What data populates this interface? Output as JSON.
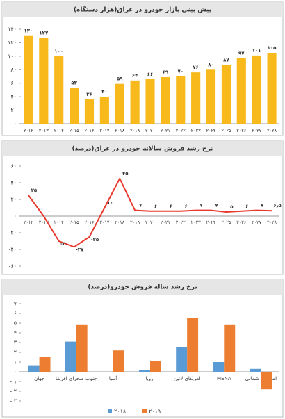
{
  "chart_data": [
    {
      "type": "bar",
      "title": "پیش بینی بازار خودرو در عراق(هزار دستگاه)",
      "color": "#f7b91c",
      "categories": [
        "۲۰۱۲",
        "۲۰۱۳",
        "۲۰۱۴",
        "۲۰۱۵",
        "۲۰۱۶",
        "۲۰۱۷",
        "۲۰۱۸",
        "۲۰۱۹",
        "۲۰۲۰",
        "۲۰۲۱",
        "۲۰۲۲",
        "۲۰۲۳",
        "۲۰۲۴",
        "۲۰۲۵",
        "۲۰۲۶",
        "۲۰۲۷",
        "۲۰۲۸"
      ],
      "values": [
        130,
        127,
        100,
        53,
        36,
        40,
        59,
        64,
        66,
        69,
        70,
        76,
        80,
        87,
        97,
        101,
        105
      ],
      "value_labels": [
        "۱۳۰",
        "۱۲۷",
        "۱۰۰",
        "۵۳",
        "۳۶",
        "۴۰",
        "۵۹",
        "۶۴",
        "۶۶",
        "۶۹",
        "۷۰",
        "۷۶",
        "۸۰",
        "۸۷",
        "۹۷",
        "۱۰۱",
        "۱۰۵"
      ],
      "ylim": [
        0,
        140
      ],
      "yticks": [
        {
          "value": 0,
          "label": "۰"
        },
        {
          "value": 20,
          "label": "۲۰"
        },
        {
          "value": 40,
          "label": "۴۰"
        },
        {
          "value": 60,
          "label": "۶۰"
        },
        {
          "value": 80,
          "label": "۸۰"
        },
        {
          "value": 100,
          "label": "۱۰۰"
        },
        {
          "value": 120,
          "label": "۱۲۰"
        },
        {
          "value": 140,
          "label": "۱۴۰"
        }
      ]
    },
    {
      "type": "line",
      "title": "نرخ رشد فروش سالانه خودرو در عراق(درصد)",
      "color": "#e8392c",
      "categories": [
        "۲۰۱۲",
        "۲۰۱۳",
        "۲۰۱۴",
        "۲۰۱۵",
        "۲۰۱۶",
        "۲۰۱۷",
        "۲۰۱۸",
        "۲۰۱۹",
        "۲۰۲۰",
        "۲۰۲۱",
        "۲۰۲۲",
        "۲۰۲۳",
        "۲۰۲۴",
        "۲۰۲۵",
        "۲۰۲۶",
        "۲۰۲۷",
        "۲۰۲۸"
      ],
      "values": [
        25,
        0,
        -30,
        -37,
        -25,
        10,
        45,
        7,
        6,
        6,
        6,
        7,
        7,
        5,
        6,
        7,
        6.5
      ],
      "value_labels": [
        "۲۵",
        "۰",
        "-۳۰",
        "-۳۷",
        "-۲۵",
        "۱۰",
        "۴۵",
        "۷",
        "۶",
        "۶",
        "۶",
        "۷",
        "۷",
        "۵",
        "۶",
        "۷",
        "۶٫۵"
      ],
      "ylim": [
        -60,
        60
      ],
      "yticks": [
        {
          "value": -60,
          "label": "-۶۰"
        },
        {
          "value": -40,
          "label": "-۴۰"
        },
        {
          "value": -20,
          "label": "-۲۰"
        },
        {
          "value": 0,
          "label": "۰"
        },
        {
          "value": 20,
          "label": "۲۰"
        },
        {
          "value": 40,
          "label": "۴۰"
        },
        {
          "value": 60,
          "label": "۶۰"
        }
      ]
    },
    {
      "type": "bar",
      "title": "نرخ رشد ساله فروش خودرو(درصد)",
      "categories": [
        "جهان",
        "جنوب صحرای افریقا",
        "آسیا",
        "اروپا",
        "امریکای لاتین",
        "MENA",
        "امریکای شمالی"
      ],
      "series": [
        {
          "name": "۲۰۱۸",
          "color": "#5b9bd5",
          "values": [
            0.06,
            0.31,
            null,
            0.02,
            0.25,
            0.1,
            0.03
          ]
        },
        {
          "name": "۲۰۱۹",
          "color": "#ed7d31",
          "values": [
            0.15,
            0.48,
            0.22,
            0.11,
            0.55,
            0.48,
            -0.18
          ]
        }
      ],
      "ylim": [
        -0.3,
        0.7
      ],
      "yticks": [
        {
          "value": -0.3,
          "label": "-.۳"
        },
        {
          "value": -0.2,
          "label": "-.۲"
        },
        {
          "value": -0.1,
          "label": "-.۱"
        },
        {
          "value": 0,
          "label": "۰"
        },
        {
          "value": 0.1,
          "label": ".۱"
        },
        {
          "value": 0.2,
          "label": ".۲"
        },
        {
          "value": 0.3,
          "label": ".۳"
        },
        {
          "value": 0.4,
          "label": ".۴"
        },
        {
          "value": 0.5,
          "label": ".۵"
        },
        {
          "value": 0.6,
          "label": ".۶"
        },
        {
          "value": 0.7,
          "label": ".۷"
        }
      ]
    }
  ]
}
